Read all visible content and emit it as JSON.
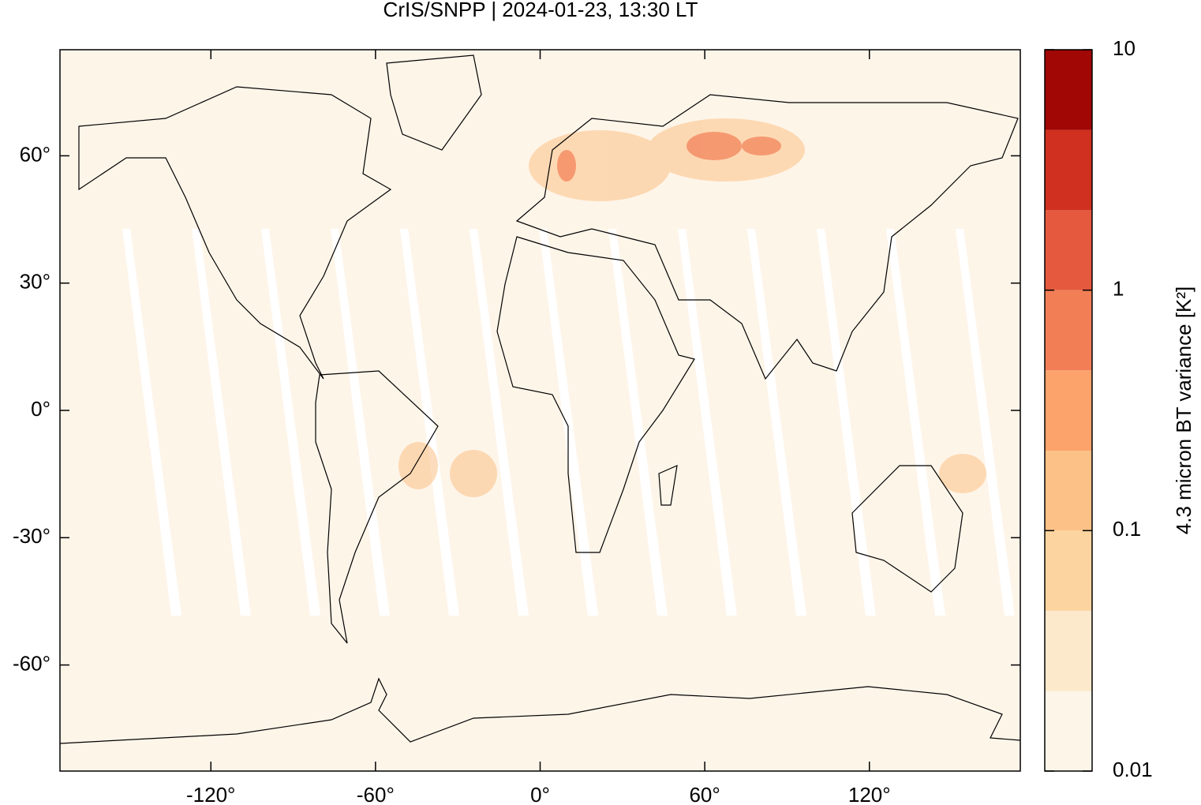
{
  "chart_data": {
    "type": "map",
    "title": "CrIS/SNPP | 2024-01-23, 13:30 LT",
    "xlim": [
      -175,
      175
    ],
    "ylim": [
      -85,
      85
    ],
    "xticks": [
      {
        "value": -120,
        "label": "-120°"
      },
      {
        "value": -60,
        "label": "-60°"
      },
      {
        "value": 0,
        "label": "0°"
      },
      {
        "value": 60,
        "label": "60°"
      },
      {
        "value": 120,
        "label": "120°"
      }
    ],
    "yticks": [
      {
        "value": 60,
        "label": "60°"
      },
      {
        "value": 30,
        "label": "30°"
      },
      {
        "value": 0,
        "label": "0°"
      },
      {
        "value": -30,
        "label": "-30°"
      },
      {
        "value": -60,
        "label": "-60°"
      }
    ],
    "colorbar": {
      "label": "4.3 micron BT variance [K²]",
      "log_scale": true,
      "lim": [
        0.01,
        10
      ],
      "ticks": [
        0.01,
        0.1,
        1,
        10
      ],
      "levels": [
        0.01,
        0.0215,
        0.0464,
        0.1,
        0.215,
        0.464,
        1,
        2.15,
        4.64,
        10
      ],
      "colors": [
        "#fef5e9",
        "#fce8cb",
        "#fcd4a0",
        "#fbc186",
        "#fca26b",
        "#f27e56",
        "#e55a3e",
        "#d0301f",
        "#a00705"
      ]
    }
  }
}
